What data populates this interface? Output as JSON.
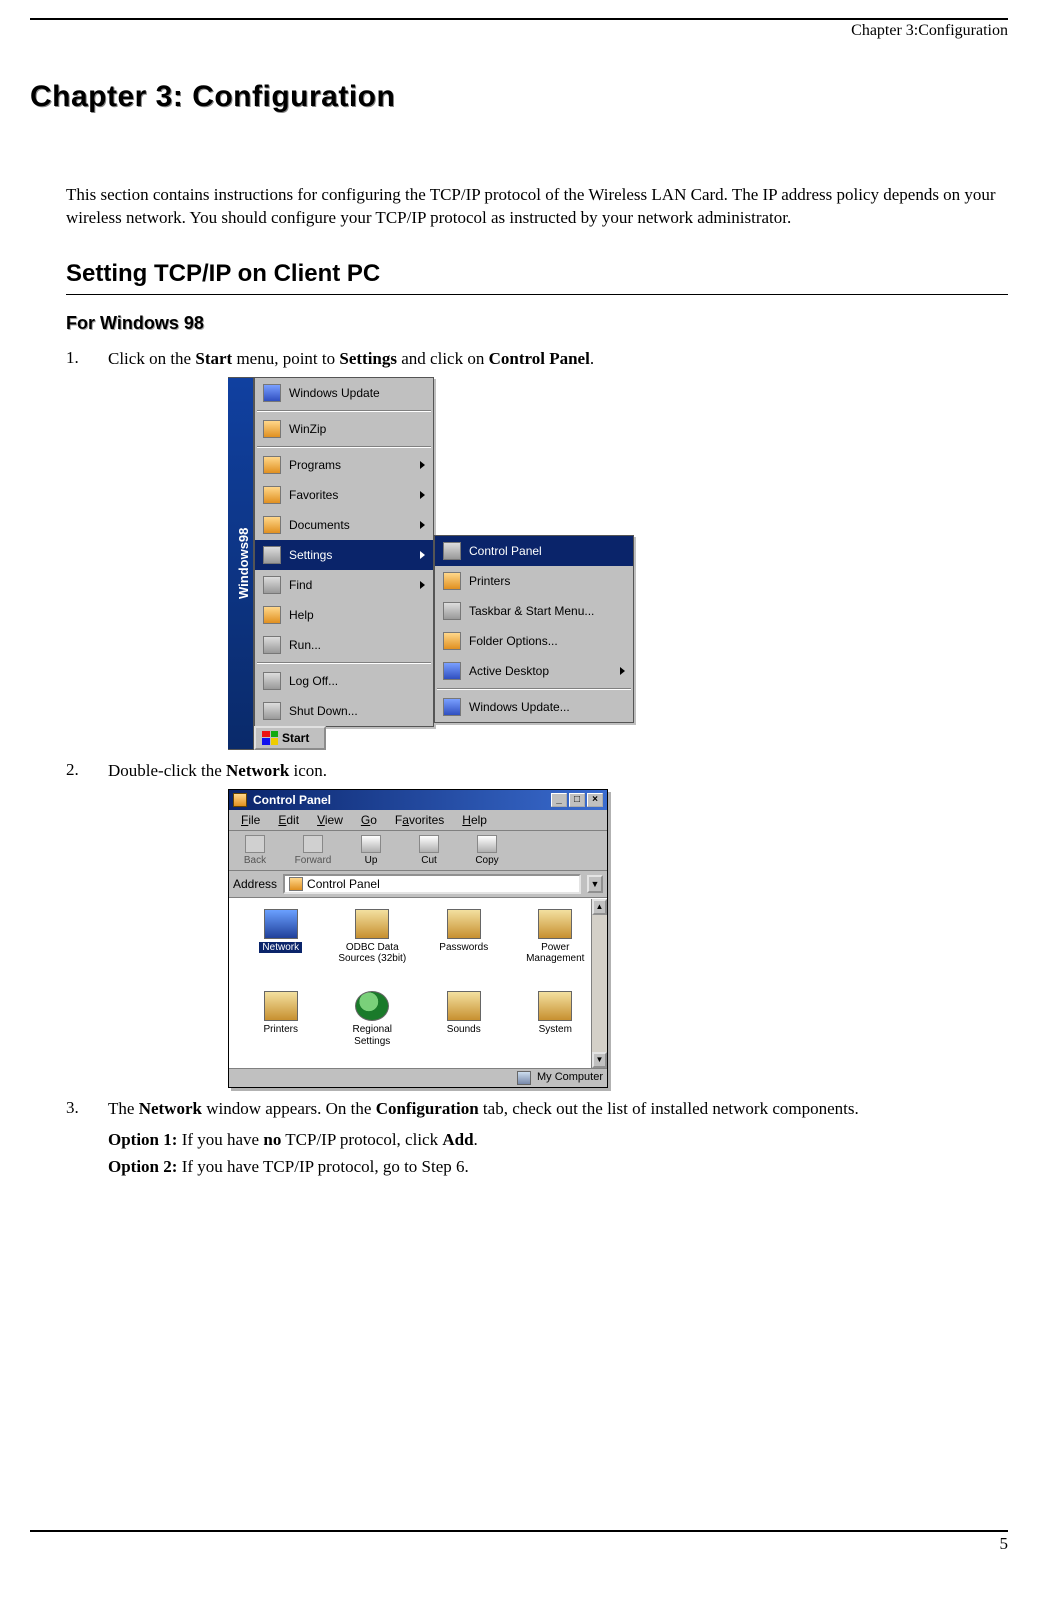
{
  "header": {
    "running": "Chapter 3:Configuration"
  },
  "chapter": {
    "title": "Chapter 3: Configuration"
  },
  "intro": "This section contains instructions for configuring the TCP/IP protocol of the Wireless LAN Card. The IP address policy depends on your wireless network. You should configure your TCP/IP protocol as instructed by your network administrator.",
  "section": {
    "title": "Setting TCP/IP on Client PC"
  },
  "subsection": {
    "title": "For Windows 98"
  },
  "steps": {
    "s1_num": "1.",
    "s1_a": "Click on the ",
    "s1_b": "Start",
    "s1_c": " menu, point to ",
    "s1_d": "Settings",
    "s1_e": " and click on ",
    "s1_f": "Control Panel",
    "s1_g": ".",
    "s2_num": "2.",
    "s2_a": "Double-click the ",
    "s2_b": "Network",
    "s2_c": " icon.",
    "s3_num": "3.",
    "s3_a": "The ",
    "s3_b": "Network",
    "s3_c": " window appears. On the ",
    "s3_d": "Configuration",
    "s3_e": " tab, check out the list of installed network components.",
    "opt1_a": "Option 1:",
    "opt1_b": " If you have ",
    "opt1_c": "no",
    "opt1_d": " TCP/IP protocol, click ",
    "opt1_e": "Add",
    "opt1_f": ".",
    "opt2_a": "Option 2:",
    "opt2_b": " If you have TCP/IP protocol, go to Step 6."
  },
  "startmenu": {
    "stripe": "Windows98",
    "items": {
      "i0": "Windows Update",
      "i1": "WinZip",
      "i2": "Programs",
      "i3": "Favorites",
      "i4": "Documents",
      "i5": "Settings",
      "i6": "Find",
      "i7": "Help",
      "i8": "Run...",
      "i9": "Log Off...",
      "i10": "Shut Down..."
    },
    "submenu": {
      "s0": "Control Panel",
      "s1": "Printers",
      "s2": "Taskbar & Start Menu...",
      "s3": "Folder Options...",
      "s4": "Active Desktop",
      "s5": "Windows Update..."
    },
    "start_label": "Start"
  },
  "cp": {
    "title": "Control Panel",
    "menu": {
      "m0": "File",
      "m1": "Edit",
      "m2": "View",
      "m3": "Go",
      "m4": "Favorites",
      "m5": "Help"
    },
    "tools": {
      "t0": "Back",
      "t1": "Forward",
      "t2": "Up",
      "t3": "Cut",
      "t4": "Copy"
    },
    "addr_label": "Address",
    "addr_value": "Control Panel",
    "icons": {
      "r0c0": "Network",
      "r0c1a": "ODBC Data",
      "r0c1b": "Sources (32bit)",
      "r0c2": "Passwords",
      "r0c3a": "Power",
      "r0c3b": "Management",
      "r1c0": "Printers",
      "r1c1a": "Regional",
      "r1c1b": "Settings",
      "r1c2": "Sounds",
      "r1c3": "System"
    },
    "status": "My Computer"
  },
  "footer": {
    "page": "5"
  }
}
